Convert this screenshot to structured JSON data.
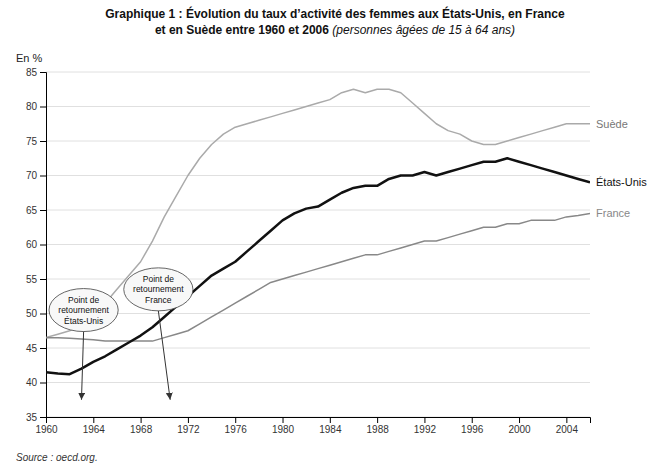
{
  "chart_data": {
    "type": "line",
    "title": [
      "Graphique 1 : Évolution du taux d’activité des femmes aux États-Unis, en France",
      "et en Suède entre 1960 et 2006"
    ],
    "subtitle": " (personnes âgées de 15 à 64 ans)",
    "y_label": "En %",
    "source": "Source : oecd.org.",
    "x": [
      1960,
      1961,
      1962,
      1963,
      1964,
      1965,
      1966,
      1967,
      1968,
      1969,
      1970,
      1971,
      1972,
      1973,
      1974,
      1975,
      1976,
      1977,
      1978,
      1979,
      1980,
      1981,
      1982,
      1983,
      1984,
      1985,
      1986,
      1987,
      1988,
      1989,
      1990,
      1991,
      1992,
      1993,
      1994,
      1995,
      1996,
      1997,
      1998,
      1999,
      2000,
      2001,
      2002,
      2003,
      2004,
      2005,
      2006
    ],
    "series": [
      {
        "name": "Suède",
        "color": "#aaaaaa",
        "values": [
          46.5,
          47.0,
          47.5,
          48.5,
          50.0,
          51.5,
          53.5,
          55.5,
          57.5,
          60.5,
          64.0,
          67.0,
          70.0,
          72.5,
          74.5,
          76.0,
          77.0,
          77.5,
          78.0,
          78.5,
          79.0,
          79.5,
          80.0,
          80.5,
          81.0,
          82.0,
          82.5,
          82.0,
          82.5,
          82.5,
          82.0,
          80.5,
          79.0,
          77.5,
          76.5,
          76.0,
          75.0,
          74.5,
          74.5,
          75.0,
          75.5,
          76.0,
          76.5,
          77.0,
          77.5,
          77.5,
          77.5
        ]
      },
      {
        "name": "France",
        "color": "#888888",
        "values": [
          46.5,
          46.5,
          46.4,
          46.3,
          46.2,
          46.0,
          46.0,
          46.0,
          46.0,
          46.0,
          46.5,
          47.0,
          47.5,
          48.5,
          49.5,
          50.5,
          51.5,
          52.5,
          53.5,
          54.5,
          55.0,
          55.5,
          56.0,
          56.5,
          57.0,
          57.5,
          58.0,
          58.5,
          58.5,
          59.0,
          59.5,
          60.0,
          60.5,
          60.5,
          61.0,
          61.5,
          62.0,
          62.5,
          62.5,
          63.0,
          63.0,
          63.5,
          63.5,
          63.5,
          64.0,
          64.2,
          64.5
        ]
      },
      {
        "name": "États-Unis",
        "color": "#111111",
        "values": [
          41.5,
          41.3,
          41.2,
          42.0,
          43.0,
          43.8,
          44.8,
          45.8,
          46.8,
          48.0,
          49.5,
          51.0,
          52.5,
          54.0,
          55.5,
          56.5,
          57.5,
          59.0,
          60.5,
          62.0,
          63.5,
          64.5,
          65.2,
          65.5,
          66.5,
          67.5,
          68.2,
          68.5,
          68.5,
          69.5,
          70.0,
          70.0,
          70.5,
          70.0,
          70.5,
          71.0,
          71.5,
          72.0,
          72.0,
          72.5,
          72.0,
          71.5,
          71.0,
          70.5,
          70.0,
          69.5,
          69.0
        ]
      }
    ],
    "xlim": [
      1960,
      2006
    ],
    "ylim": [
      35,
      85
    ],
    "xticks": [
      1960,
      1964,
      1968,
      1972,
      1976,
      1980,
      1984,
      1988,
      1992,
      1996,
      2000,
      2004
    ],
    "yticks": [
      35,
      40,
      45,
      50,
      55,
      60,
      65,
      70,
      75,
      80,
      85
    ],
    "grid": true,
    "annotations": [
      {
        "text": "Point de\nretournement\nÉtats-Unis",
        "x": 1962.3,
        "y": 50.5,
        "arrow_x": 1963.0,
        "arrow_y": 37.5
      },
      {
        "text": "Point de\nretournement\nFrance",
        "x": 1969.5,
        "y": 53.5,
        "arrow_x": 1970.5,
        "arrow_y": 37.5
      }
    ]
  }
}
